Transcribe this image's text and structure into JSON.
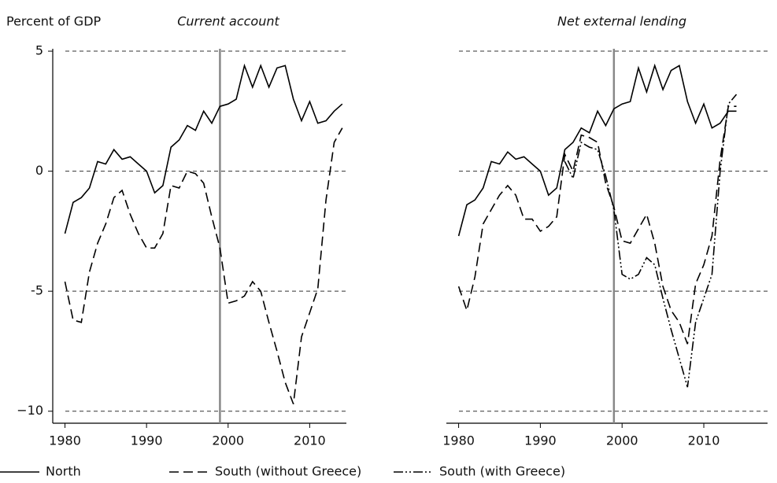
{
  "chart_data": [
    {
      "type": "line",
      "title": "Current account",
      "y_label": "Percent of GDP",
      "x": [
        1980,
        1981,
        1982,
        1983,
        1984,
        1985,
        1986,
        1987,
        1988,
        1989,
        1990,
        1991,
        1992,
        1993,
        1994,
        1995,
        1996,
        1997,
        1998,
        1999,
        2000,
        2001,
        2002,
        2003,
        2004,
        2005,
        2006,
        2007,
        2008,
        2009,
        2010,
        2011,
        2012,
        2013,
        2014
      ],
      "series": [
        {
          "color": "#000",
          "dash": "none",
          "values": [
            -2.6,
            -1.3,
            -1.1,
            -0.7,
            0.4,
            0.3,
            0.9,
            0.5,
            0.6,
            0.3,
            0.0,
            -0.9,
            -0.6,
            1.0,
            1.3,
            1.9,
            1.7,
            2.5,
            2.0,
            2.7,
            2.8,
            3.0,
            4.4,
            3.5,
            4.4,
            3.5,
            4.3,
            4.4,
            3.0,
            2.1,
            2.9,
            2.0,
            2.1,
            2.5,
            2.8
          ]
        },
        {
          "color": "#000",
          "dash": "12,6",
          "values": [
            -4.6,
            -6.2,
            -6.3,
            -4.2,
            -3.0,
            -2.2,
            -1.1,
            -0.8,
            -1.8,
            -2.6,
            -3.2,
            -3.2,
            -2.6,
            -0.6,
            -0.7,
            0.0,
            -0.1,
            -0.5,
            -1.9,
            -3.2,
            -5.5,
            -5.4,
            -5.2,
            -4.6,
            -5.0,
            -6.3,
            -7.5,
            -8.8,
            -9.7,
            -6.9,
            -5.9,
            -4.9,
            -1.2,
            1.2,
            1.8
          ]
        }
      ],
      "xlim": [
        1978.5,
        2014.5
      ],
      "xticks": [
        1980,
        1990,
        2000,
        2010
      ],
      "ylim": [
        -10.5,
        5.1
      ],
      "yticks": [
        5,
        0,
        -5,
        {
          "value": -10,
          "label": "−10"
        }
      ],
      "grid": true,
      "y_axis": true,
      "vline": 1999
    },
    {
      "type": "line",
      "title": "Net external lending",
      "x": [
        1980,
        1981,
        1982,
        1983,
        1984,
        1985,
        1986,
        1987,
        1988,
        1989,
        1990,
        1991,
        1992,
        1993,
        1994,
        1995,
        1996,
        1997,
        1998,
        1999,
        2000,
        2001,
        2002,
        2003,
        2004,
        2005,
        2006,
        2007,
        2008,
        2009,
        2010,
        2011,
        2012,
        2013,
        2014
      ],
      "series": [
        {
          "name": "North",
          "color": "#000",
          "dash": "none",
          "values": [
            -2.7,
            -1.4,
            -1.2,
            -0.7,
            0.4,
            0.3,
            0.8,
            0.5,
            0.6,
            0.3,
            0.0,
            -1.0,
            -0.7,
            0.9,
            1.2,
            1.8,
            1.6,
            2.5,
            1.9,
            2.6,
            2.8,
            2.9,
            4.3,
            3.3,
            4.4,
            3.4,
            4.2,
            4.4,
            2.9,
            2.0,
            2.8,
            1.8,
            2.0,
            2.5,
            2.5
          ]
        },
        {
          "name": "South (without Greece)",
          "color": "#000",
          "dash": "12,6",
          "values": [
            -4.8,
            -5.8,
            -4.4,
            -2.2,
            -1.6,
            -1.0,
            -0.6,
            -1.0,
            -2.0,
            -2.0,
            -2.5,
            -2.3,
            -1.9,
            0.7,
            0.0,
            1.5,
            1.4,
            1.2,
            -0.5,
            -1.5,
            -2.9,
            -3.0,
            -2.4,
            -1.8,
            -3.0,
            -4.8,
            -5.8,
            -6.3,
            -7.2,
            -4.7,
            -3.9,
            -2.7,
            0.5,
            2.7,
            2.7
          ]
        },
        {
          "name": "South (with Greece)",
          "color": "#000",
          "dash": "12,3,2,3,2,3",
          "values": [
            null,
            null,
            null,
            null,
            null,
            null,
            null,
            null,
            null,
            null,
            null,
            null,
            null,
            0.4,
            -0.3,
            1.2,
            1.0,
            0.9,
            -0.2,
            -1.6,
            -4.3,
            -4.5,
            -4.3,
            -3.6,
            -3.9,
            -5.3,
            -6.6,
            -7.8,
            -9.0,
            -6.3,
            -5.3,
            -4.3,
            0.0,
            2.8,
            3.2
          ]
        }
      ],
      "xlim": [
        1978.5,
        2017.8
      ],
      "xticks": [
        1980,
        1990,
        2000,
        2010
      ],
      "ylim": [
        -10.5,
        5.1
      ],
      "grid": true,
      "y_axis": false,
      "vline": 1999
    }
  ]
}
